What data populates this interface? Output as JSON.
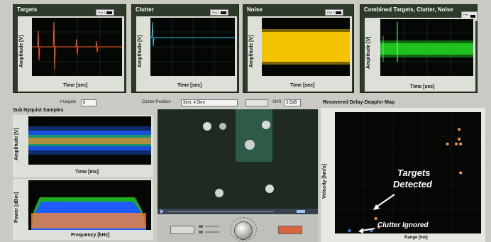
{
  "colors": {
    "background": "#c9cac4",
    "panel": "#2e3a2a",
    "plot_bg": "#050705",
    "targets_trace": "#ff5a1f",
    "clutter_trace": "#2ec0e8",
    "noise_trace": "#f5c400",
    "combined_trace": "#1fc21f",
    "stop_button": "#d8643c"
  },
  "panels": {
    "targets": {
      "title": "Targets",
      "legend": "Plot 1",
      "ylabel": "Amplitude [V]",
      "xlabel": "Time [sec]"
    },
    "clutter": {
      "title": "Clutter",
      "legend": "Plot 1",
      "ylabel": "Amplitude [V]",
      "xlabel": "Time [sec]"
    },
    "noise": {
      "title": "Noise",
      "legend": "Plot 1",
      "ylabel": "Amplitude [V]",
      "xlabel": "Time [sec]"
    },
    "combined": {
      "title": "Combined Targets, Clutter, Noise",
      "legend": "Plot 1",
      "ylabel": "Amplitude [V]",
      "xlabel": "Time [sec]"
    }
  },
  "controls": {
    "num_targets_label": "# targets",
    "num_targets_value": "8",
    "clutter_position_label": "Clutter Position",
    "clutter_position_value": "3km, 4.5km",
    "snr_label": "SNR",
    "snr_value": "3.5dB"
  },
  "sub_nyquist": {
    "title": "Sub Nyquist Samples",
    "time_ylabel": "Amplitude [V]",
    "time_xlabel": "Time [ms]",
    "spectrum_ylabel": "Power [dBm]",
    "spectrum_xlabel": "Frequency [kHz]"
  },
  "doppler_map": {
    "title": "Recovered Delay-Doppler Map",
    "ylabel": "Velocity [km/s]",
    "xlabel": "Range [km]",
    "annotation_targets_line1": "Targets",
    "annotation_targets_line2": "Detected",
    "annotation_clutter": "Clutter Ignored"
  },
  "chart_data": {
    "type": "scatter",
    "title": "Recovered Delay-Doppler Map",
    "xlabel": "Range [km]",
    "ylabel": "Velocity [km/s]",
    "series": [
      {
        "name": "Targets Detected",
        "color": "#ff9a3c",
        "points": [
          [
            10.6,
            24.0
          ],
          [
            10.5,
            38.0
          ],
          [
            10.5,
            42.0
          ],
          [
            9.7,
            36.0
          ],
          [
            10.3,
            36.0
          ],
          [
            10.6,
            36.0
          ],
          [
            4.8,
            5.0
          ],
          [
            5.0,
            1.5
          ]
        ]
      },
      {
        "name": "Clutter Ignored",
        "color": "#3a8cff",
        "points": [
          [
            3.0,
            0.0
          ],
          [
            4.5,
            0.0
          ]
        ]
      }
    ]
  }
}
